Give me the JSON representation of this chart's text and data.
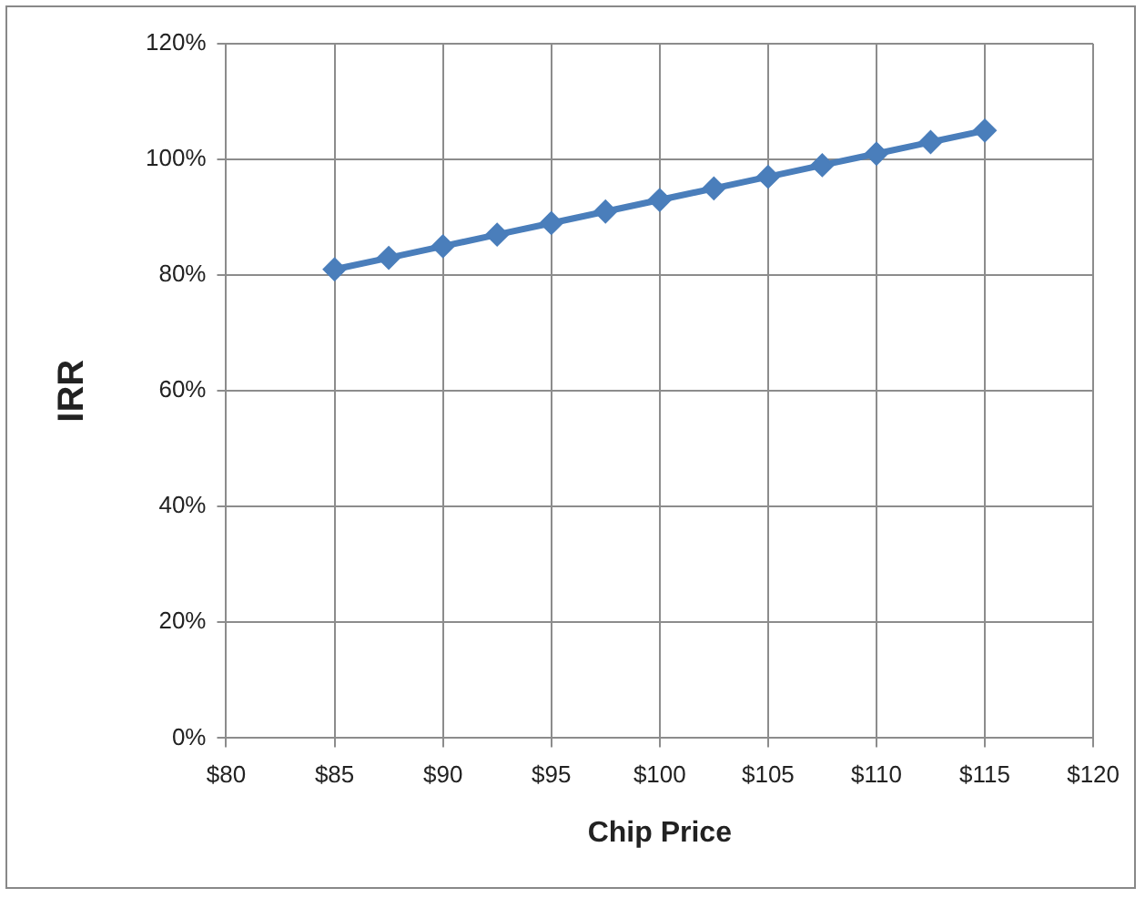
{
  "chart_data": {
    "type": "line",
    "xlabel": "Chip Price",
    "ylabel": "IRR",
    "x": [
      85,
      87.5,
      90,
      92.5,
      95,
      97.5,
      100,
      102.5,
      105,
      107.5,
      110,
      112.5,
      115
    ],
    "series": [
      {
        "color": "#4a7ebb",
        "values": [
          81,
          83,
          85,
          87,
          89,
          91,
          93,
          95,
          97,
          99,
          101,
          103,
          105
        ]
      }
    ],
    "xlim": [
      80,
      120
    ],
    "xticks": [
      {
        "value": 80,
        "label": "$80"
      },
      {
        "value": 85,
        "label": "$85"
      },
      {
        "value": 90,
        "label": "$90"
      },
      {
        "value": 95,
        "label": "$95"
      },
      {
        "value": 100,
        "label": "$100"
      },
      {
        "value": 105,
        "label": "$105"
      },
      {
        "value": 110,
        "label": "$110"
      },
      {
        "value": 115,
        "label": "$115"
      },
      {
        "value": 120,
        "label": "$120"
      }
    ],
    "ylim": [
      0,
      120
    ],
    "yticks": [
      {
        "value": 0,
        "label": "0%"
      },
      {
        "value": 20,
        "label": "20%"
      },
      {
        "value": 40,
        "label": "40%"
      },
      {
        "value": 60,
        "label": "60%"
      },
      {
        "value": 80,
        "label": "80%"
      },
      {
        "value": 100,
        "label": "100%"
      },
      {
        "value": 120,
        "label": "120%"
      }
    ],
    "grid": true,
    "legend": false,
    "marker": "diamond",
    "line_style": "solid"
  }
}
